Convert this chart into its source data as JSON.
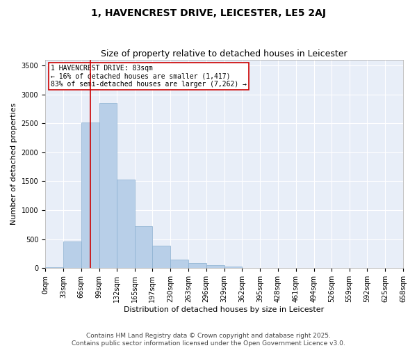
{
  "title_line1": "1, HAVENCREST DRIVE, LEICESTER, LE5 2AJ",
  "title_line2": "Size of property relative to detached houses in Leicester",
  "xlabel": "Distribution of detached houses by size in Leicester",
  "ylabel": "Number of detached properties",
  "background_color": "#e8eef8",
  "bar_color": "#b8cfe8",
  "bar_edge_color": "#8aafd0",
  "vline_x": 83,
  "vline_color": "#cc0000",
  "annotation_text": "1 HAVENCREST DRIVE: 83sqm\n← 16% of detached houses are smaller (1,417)\n83% of semi-detached houses are larger (7,262) →",
  "annotation_box_color": "#cc0000",
  "bins": [
    0,
    33,
    66,
    99,
    132,
    165,
    197,
    230,
    263,
    296,
    329,
    362,
    395,
    428,
    461,
    494,
    526,
    559,
    592,
    625,
    658
  ],
  "bar_heights": [
    20,
    460,
    2520,
    2850,
    1530,
    730,
    390,
    145,
    90,
    55,
    25,
    10,
    5,
    3,
    2,
    1,
    1,
    1,
    0,
    0
  ],
  "ylim": [
    0,
    3600
  ],
  "yticks": [
    0,
    500,
    1000,
    1500,
    2000,
    2500,
    3000,
    3500
  ],
  "tick_labels": [
    "0sqm",
    "33sqm",
    "66sqm",
    "99sqm",
    "132sqm",
    "165sqm",
    "197sqm",
    "230sqm",
    "263sqm",
    "296sqm",
    "329sqm",
    "362sqm",
    "395sqm",
    "428sqm",
    "461sqm",
    "494sqm",
    "526sqm",
    "559sqm",
    "592sqm",
    "625sqm",
    "658sqm"
  ],
  "footer_line1": "Contains HM Land Registry data © Crown copyright and database right 2025.",
  "footer_line2": "Contains public sector information licensed under the Open Government Licence v3.0.",
  "title_fontsize": 10,
  "subtitle_fontsize": 9,
  "axis_label_fontsize": 8,
  "tick_fontsize": 7,
  "annotation_fontsize": 7,
  "footer_fontsize": 6.5
}
